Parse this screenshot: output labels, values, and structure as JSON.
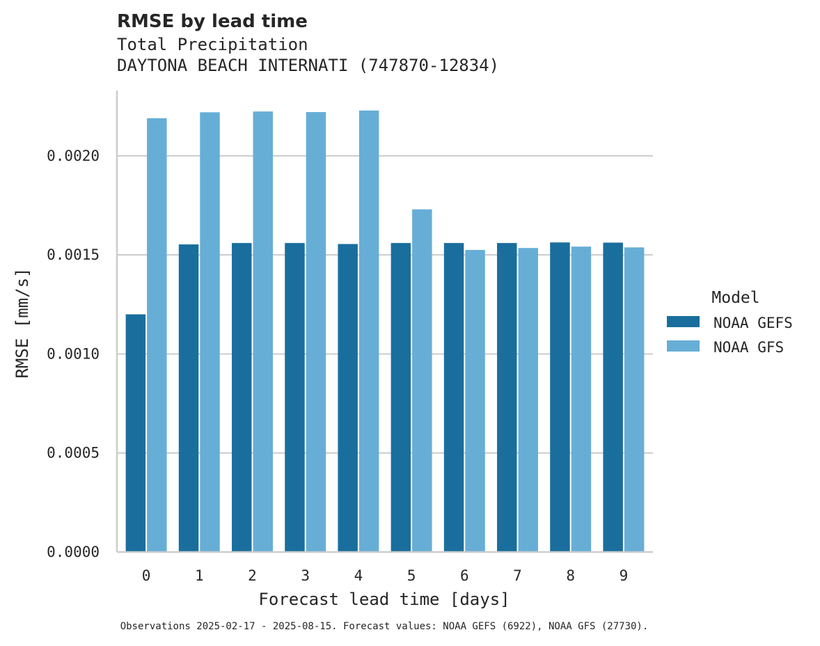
{
  "chart_data": {
    "type": "bar",
    "title": "RMSE by lead time",
    "subtitle_lines": [
      "Total Precipitation",
      "DAYTONA BEACH INTERNATI (747870-12834)"
    ],
    "xlabel": "Forecast lead time [days]",
    "ylabel": "RMSE [mm/s]",
    "categories": [
      "0",
      "1",
      "2",
      "3",
      "4",
      "5",
      "6",
      "7",
      "8",
      "9"
    ],
    "ylim": [
      0,
      0.00233
    ],
    "yticks": [
      0.0,
      0.0005,
      0.001,
      0.0015,
      0.002
    ],
    "ytick_labels": [
      "0.0000",
      "0.0005",
      "0.0010",
      "0.0015",
      "0.0020"
    ],
    "grid": "y",
    "legend": {
      "title": "Model",
      "placement": "right"
    },
    "series": [
      {
        "name": "NOAA GEFS",
        "color": "#1a6e9d",
        "values": [
          0.0012,
          0.001553,
          0.00156,
          0.00156,
          0.001555,
          0.00156,
          0.00156,
          0.00156,
          0.001563,
          0.001562
        ]
      },
      {
        "name": "NOAA GFS",
        "color": "#67aed6",
        "values": [
          0.00219,
          0.00222,
          0.002224,
          0.002221,
          0.002229,
          0.00173,
          0.001525,
          0.001535,
          0.001542,
          0.001538
        ]
      }
    ],
    "footnote": "Observations 2025-02-17 - 2025-08-15. Forecast values: NOAA GEFS (6922), NOAA GFS (27730)."
  }
}
